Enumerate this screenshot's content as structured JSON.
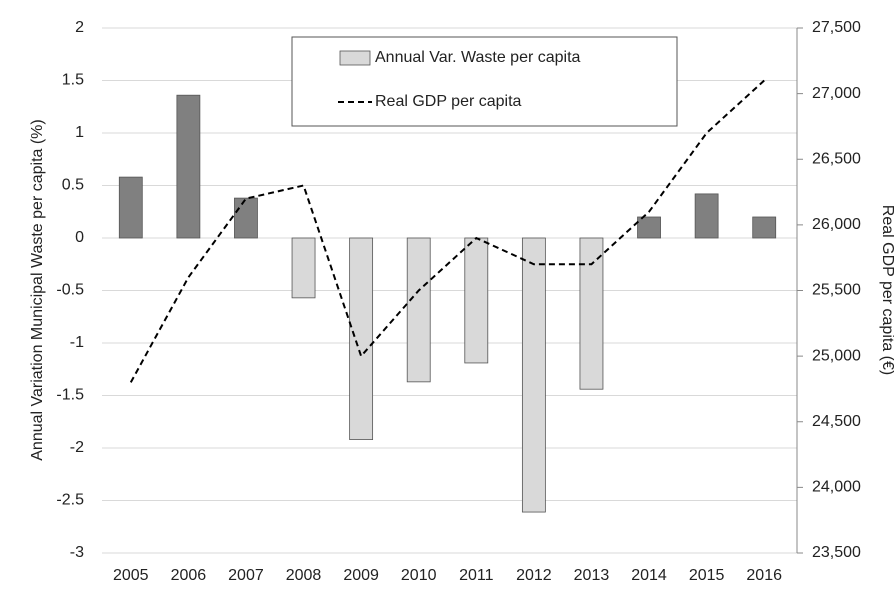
{
  "chart_data": {
    "type": "bar-line",
    "categories": [
      "2005",
      "2006",
      "2007",
      "2008",
      "2009",
      "2010",
      "2011",
      "2012",
      "2013",
      "2014",
      "2015",
      "2016"
    ],
    "series": [
      {
        "name": "Annual Var. Waste per capita",
        "type": "bar",
        "axis": "y",
        "color": "#d9d9d9",
        "colors": [
          "#808080",
          "#808080",
          "#808080",
          "#d9d9d9",
          "#d9d9d9",
          "#d9d9d9",
          "#d9d9d9",
          "#d9d9d9",
          "#d9d9d9",
          "#808080",
          "#808080",
          "#808080"
        ],
        "values": [
          0.58,
          1.36,
          0.38,
          -0.57,
          -1.92,
          -1.37,
          -1.19,
          -2.61,
          -1.44,
          0.2,
          0.42,
          0.2
        ]
      },
      {
        "name": "Real GDP per capita",
        "type": "line",
        "axis": "y2",
        "color": "#000000",
        "values": [
          24800,
          25600,
          26200,
          26300,
          25000,
          25500,
          25900,
          25700,
          25700,
          26100,
          26700,
          27100
        ]
      }
    ],
    "ylabel": "Annual Variation Municipal Waste per capita (%)",
    "y2label": "Real GDP per capita (€)",
    "ylim": [
      -3,
      2
    ],
    "yticks": [
      -3,
      -2.5,
      -2,
      -1.5,
      -1,
      -0.5,
      0,
      0.5,
      1,
      1.5,
      2
    ],
    "y2lim": [
      23500,
      27500
    ],
    "y2ticks": [
      {
        "value": 23500,
        "label": "23,500"
      },
      {
        "value": 24000,
        "label": "24,000"
      },
      {
        "value": 24500,
        "label": "24,500"
      },
      {
        "value": 25000,
        "label": "25,000"
      },
      {
        "value": 25500,
        "label": "25,500"
      },
      {
        "value": 26000,
        "label": "26,000"
      },
      {
        "value": 26500,
        "label": "26,500"
      },
      {
        "value": 27000,
        "label": "27,000"
      },
      {
        "value": 27500,
        "label": "27,500"
      }
    ],
    "grid": true
  }
}
